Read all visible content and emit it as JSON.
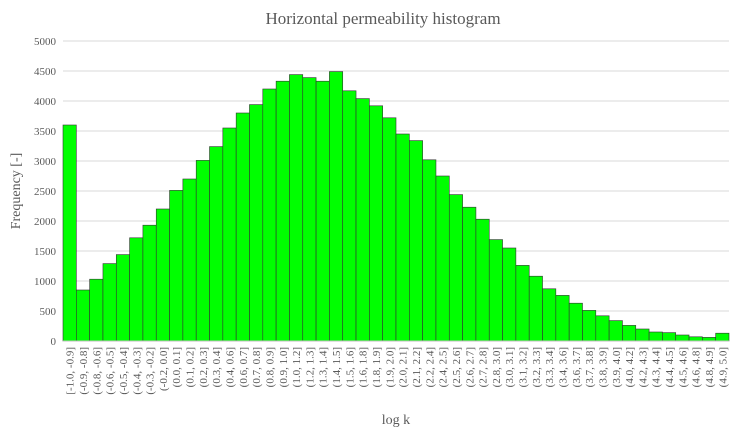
{
  "chart_data": {
    "type": "bar",
    "title": "Horizontal  permeability  histogram",
    "xlabel": "log k",
    "ylabel": "Frequency [-]",
    "ylim": [
      0,
      5000
    ],
    "yticks": [
      "0",
      "500",
      "1000",
      "1500",
      "2000",
      "2500",
      "3000",
      "3500",
      "4000",
      "4500",
      "5000"
    ],
    "grid": true,
    "legend": "none",
    "bar_color": "#00ff00",
    "categories": [
      "[-1.0, -0.9]",
      "(-0.9, -0.8]",
      "(-0.8, -0.6]",
      "(-0.6, -0.5]",
      "(-0.5, -0.4]",
      "(-0.4, -0.3]",
      "(-0.3, -0.2]",
      "(-0.2, 0.0]",
      "(0.0, 0.1]",
      "(0.1, 0.2]",
      "(0.2, 0.3]",
      "(0.3, 0.4]",
      "(0.4, 0.6]",
      "(0.6, 0.7]",
      "(0.7, 0.8]",
      "(0.8, 0.9]",
      "(0.9, 1.0]",
      "(1.0, 1.2]",
      "(1.2, 1.3]",
      "(1.3, 1.4]",
      "(1.4, 1.5]",
      "(1.5, 1.6]",
      "(1.6, 1.8]",
      "(1.8, 1.9]",
      "(1.9, 2.0]",
      "(2.0, 2.1]",
      "(2.1, 2.2]",
      "(2.2, 2.4]",
      "(2.4, 2.5]",
      "(2.5, 2.6]",
      "(2.6, 2.7]",
      "(2.7, 2.8]",
      "(2.8, 3.0]",
      "(3.0, 3.1]",
      "(3.1, 3.2]",
      "(3.2, 3.3]",
      "(3.3, 3.4]",
      "(3.4, 3.6]",
      "(3.6, 3.7]",
      "(3.7, 3.8]",
      "(3.8, 3.9]",
      "(3.9, 4.0]",
      "(4.0, 4.2]",
      "(4.2, 4.3]",
      "(4.3, 4.4]",
      "(4.4, 4.5]",
      "(4.5, 4.6]",
      "(4.6, 4.8]",
      "(4.8, 4.9]",
      "(4.9, 5.0]"
    ],
    "values": [
      3600,
      850,
      1030,
      1290,
      1440,
      1720,
      1930,
      2200,
      2510,
      2700,
      3010,
      3240,
      3550,
      3800,
      3940,
      4200,
      4330,
      4440,
      4390,
      4330,
      4490,
      4170,
      4040,
      3920,
      3720,
      3450,
      3340,
      3020,
      2750,
      2440,
      2230,
      2030,
      1690,
      1550,
      1260,
      1080,
      870,
      760,
      630,
      510,
      420,
      340,
      260,
      200,
      150,
      140,
      100,
      70,
      60,
      130
    ]
  }
}
